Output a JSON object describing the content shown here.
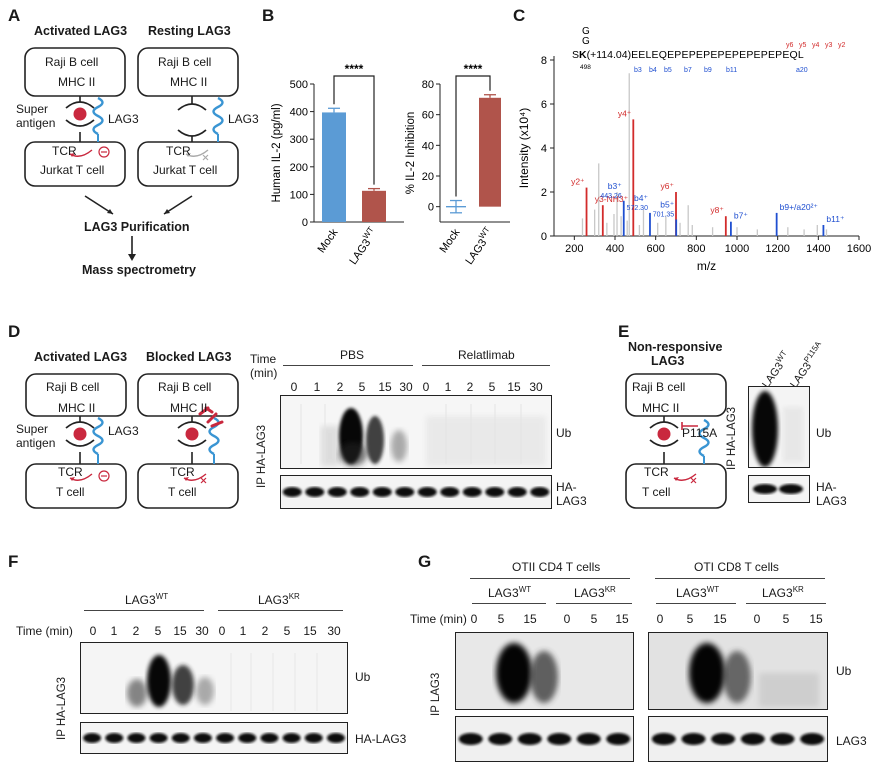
{
  "panels": {
    "A": "A",
    "B": "B",
    "C": "C",
    "D": "D",
    "E": "E",
    "F": "F",
    "G": "G"
  },
  "panelA": {
    "activated": "Activated LAG3",
    "resting": "Resting LAG3",
    "raji": "Raji B cell",
    "mhc": "MHC II",
    "super": "Super",
    "antigen": "antigen",
    "lag3": "LAG3",
    "tcr": "TCR",
    "jurkat": "Jurkat T cell",
    "purification": "LAG3 Purification",
    "ms": "Mass spectrometry"
  },
  "panelB": {
    "chart_data": [
      {
        "type": "bar",
        "categories": [
          "Mock",
          "LAG3WT"
        ],
        "values": [
          397,
          113
        ],
        "errors": [
          15,
          8
        ],
        "colors": [
          "#5b9bd5",
          "#b0544b"
        ],
        "ylabel": "Human IL-2 (pg/ml)",
        "ylim": [
          0,
          500
        ],
        "yticks": [
          "0",
          "100",
          "200",
          "300",
          "400",
          "500"
        ],
        "significance": "****"
      },
      {
        "type": "bar",
        "categories": [
          "Mock",
          "LAG3WT"
        ],
        "values": [
          0,
          71
        ],
        "errors": [
          4,
          2
        ],
        "colors": [
          "#5b9bd5",
          "#b0544b"
        ],
        "ylabel": "% IL-2 Inhibition",
        "ylim": [
          -10,
          80
        ],
        "yticks": [
          "0",
          "20",
          "40",
          "60",
          "80"
        ],
        "significance": "****"
      }
    ],
    "xlab_mock": "Mock",
    "xlab_lag": "LAG3",
    "xlab_sup": "WT"
  },
  "panelC": {
    "chart_data": {
      "type": "bar",
      "xlabel": "m/z",
      "ylabel": "Intensity (x10⁴)",
      "xlim": [
        100,
        1600
      ],
      "ylim": [
        0,
        8
      ],
      "xticks": [
        "200",
        "400",
        "600",
        "800",
        "1000",
        "1200",
        "1400",
        "1600"
      ],
      "yticks": [
        "0",
        "2",
        "4",
        "6",
        "8"
      ],
      "peaks_red": [
        {
          "x": 260,
          "y": 2.2,
          "label": "y2⁺"
        },
        {
          "x": 340,
          "y": 1.4,
          "label": "y3-NH3⁺"
        },
        {
          "x": 490,
          "y": 5.3,
          "label": "y4⁺"
        },
        {
          "x": 700,
          "y": 2.0,
          "label": "y6⁺"
        },
        {
          "x": 945,
          "y": 0.9,
          "label": "y8⁺"
        }
      ],
      "peaks_blue": [
        {
          "x": 443,
          "y": 1.6,
          "label": "b3⁺"
        },
        {
          "x": 572,
          "y": 1.05,
          "label": "b4⁺"
        },
        {
          "x": 701,
          "y": 0.75,
          "label": "b5⁺"
        },
        {
          "x": 970,
          "y": 0.65,
          "label": "b7⁺"
        },
        {
          "x": 1195,
          "y": 1.05,
          "label": "b9+/a20²⁺"
        },
        {
          "x": 1425,
          "y": 0.5,
          "label": "b11⁺"
        }
      ],
      "peaks_grey": [
        {
          "x": 240,
          "y": 0.8
        },
        {
          "x": 300,
          "y": 1.2
        },
        {
          "x": 320,
          "y": 3.3
        },
        {
          "x": 360,
          "y": 0.6
        },
        {
          "x": 395,
          "y": 1.0
        },
        {
          "x": 410,
          "y": 2.0
        },
        {
          "x": 430,
          "y": 0.9
        },
        {
          "x": 460,
          "y": 0.7
        },
        {
          "x": 470,
          "y": 7.4
        },
        {
          "x": 520,
          "y": 0.5
        },
        {
          "x": 540,
          "y": 1.2
        },
        {
          "x": 610,
          "y": 0.6
        },
        {
          "x": 650,
          "y": 0.9
        },
        {
          "x": 720,
          "y": 0.6
        },
        {
          "x": 760,
          "y": 1.4
        },
        {
          "x": 780,
          "y": 0.5
        },
        {
          "x": 880,
          "y": 0.4
        },
        {
          "x": 1000,
          "y": 0.4
        },
        {
          "x": 1100,
          "y": 0.3
        },
        {
          "x": 1250,
          "y": 0.4
        },
        {
          "x": 1330,
          "y": 0.3
        },
        {
          "x": 1395,
          "y": 0.5
        },
        {
          "x": 1440,
          "y": 0.3
        }
      ],
      "b3_mz": "443.26",
      "b4_mz": "572.30",
      "b5_mz": "701.35",
      "seq_g1": "G",
      "seq_g2": "G",
      "seq_s": "S",
      "seq_k": "K",
      "seq_mod": "(+114.04)",
      "seq_rest": "EELEQEPEPEPEPEPEPEPEPEQL",
      "k_pos": "498",
      "y_ions": [
        "y6",
        "y5",
        "y4",
        "y3",
        "y2"
      ],
      "b_ions": [
        "b3",
        "b4",
        "b5",
        "b7",
        "b9",
        "b11",
        "a20"
      ]
    }
  },
  "panelD": {
    "activated": "Activated LAG3",
    "blocked": "Blocked LAG3",
    "raji": "Raji B cell",
    "mhc": "MHC II",
    "super": "Super",
    "antigen": "antigen",
    "lag3": "LAG3",
    "tcr": "TCR",
    "tcell": "T cell",
    "time": "Time",
    "min": "(min)",
    "pbs": "PBS",
    "relat": "Relatlimab",
    "times": [
      "0",
      "1",
      "2",
      "5",
      "15",
      "30",
      "0",
      "1",
      "2",
      "5",
      "15",
      "30"
    ],
    "ub": "Ub",
    "ha1": "HA-",
    "ha2": "LAG3",
    "ip": "IP HA-LAG3"
  },
  "panelE": {
    "title1": "Non-responsive",
    "title2": "LAG3",
    "raji": "Raji B cell",
    "mhc": "MHC II",
    "p115a": "P115A",
    "tcr": "TCR",
    "tcell": "T cell",
    "lane1": "LAG3",
    "lane1sup": "WT",
    "lane2": "LAG3",
    "lane2sup": "P115A",
    "ub": "Ub",
    "ha1": "HA-",
    "ha2": "LAG3",
    "ip": "IP HA-LAG3"
  },
  "panelF": {
    "wt": "LAG3",
    "wtsup": "WT",
    "kr": "LAG3",
    "krsup": "KR",
    "time": "Time (min)",
    "times": [
      "0",
      "1",
      "2",
      "5",
      "15",
      "30",
      "0",
      "1",
      "2",
      "5",
      "15",
      "30"
    ],
    "ub": "Ub",
    "ha": "HA-LAG3",
    "ip": "IP HA-LAG3"
  },
  "panelG": {
    "otii": "OTII CD4 T cells",
    "oti": "OTI CD8 T cells",
    "wt": "LAG3",
    "wtsup": "WT",
    "kr": "LAG3",
    "krsup": "KR",
    "time": "Time (min)",
    "times": [
      "0",
      "5",
      "15",
      "0",
      "5",
      "15",
      "0",
      "5",
      "15",
      "0",
      "5",
      "15"
    ],
    "ub": "Ub",
    "lag3": "LAG3",
    "ip": "IP LAG3"
  }
}
